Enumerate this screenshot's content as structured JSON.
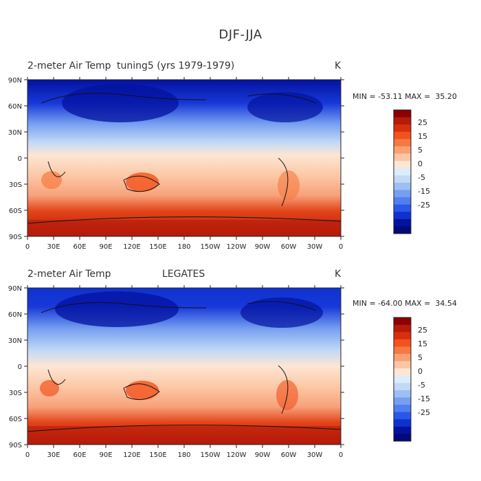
{
  "figure": {
    "title": "DJF-JJA",
    "lon_ticks": [
      "0",
      "30E",
      "60E",
      "90E",
      "120E",
      "150E",
      "180",
      "150W",
      "120W",
      "90W",
      "60W",
      "30W",
      "0"
    ],
    "lat_ticks": [
      "90N",
      "60N",
      "30N",
      "0",
      "30S",
      "60S",
      "90S"
    ],
    "colorbar_labels": [
      "25",
      "15",
      "5",
      "0",
      "-5",
      "-15",
      "-25"
    ],
    "colorbar_colors": [
      "#8b0000",
      "#b51a0a",
      "#d8300e",
      "#f2521c",
      "#f7793f",
      "#fba074",
      "#fcc6a4",
      "#fde6d3",
      "#dcecfa",
      "#c2d9f7",
      "#9dbff3",
      "#769ff0",
      "#4f7ff0",
      "#2a57e8",
      "#0f32cf",
      "#03129f",
      "#010a78"
    ]
  },
  "panels": [
    {
      "left_title": "2-meter Air Temp",
      "center_title": "tuning5 (yrs 1979-1979)",
      "units": "K",
      "minmax": "MIN = -53.11 MAX =  35.20"
    },
    {
      "left_title": "2-meter Air Temp",
      "center_title": "LEGATES",
      "units": "K",
      "minmax": "MIN = -64.00 MAX =  34.54"
    }
  ]
}
